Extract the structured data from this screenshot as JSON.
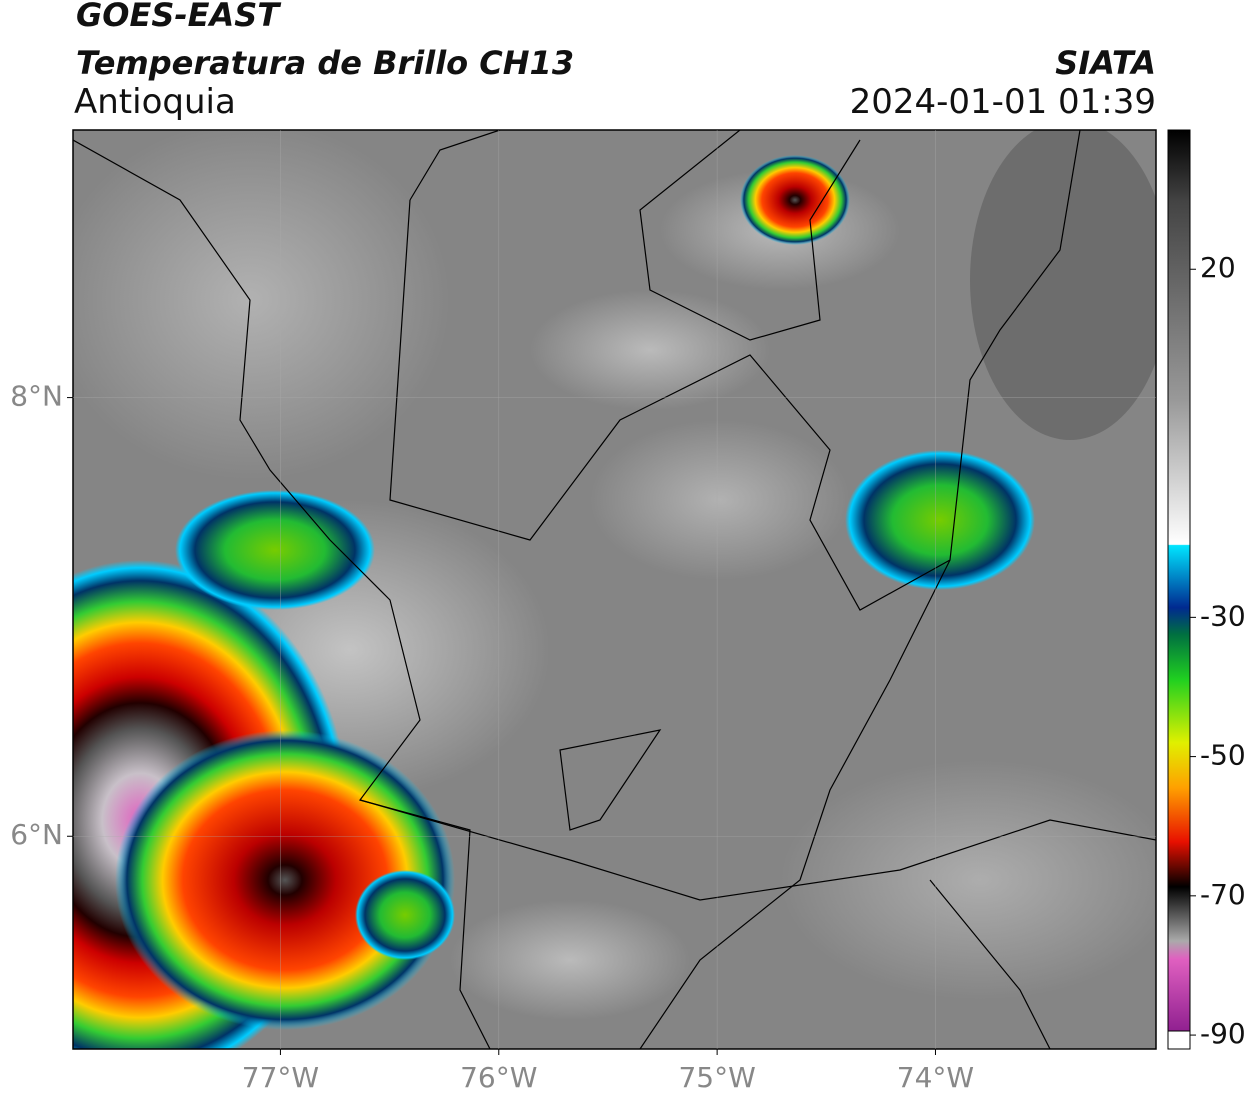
{
  "header": {
    "title": "GOES-EAST",
    "subtitle": "Temperatura de Brillo CH13",
    "region": "Antioquia",
    "source": "SIATA",
    "datetime": "2024-01-01 01:39"
  },
  "map": {
    "xlim": [
      -77.95,
      -72.99
    ],
    "ylim": [
      5.03,
      9.22
    ],
    "xticks": [
      {
        "value": -77,
        "label": "77°W"
      },
      {
        "value": -76,
        "label": "76°W"
      },
      {
        "value": -75,
        "label": "75°W"
      },
      {
        "value": -74,
        "label": "74°W"
      }
    ],
    "yticks": [
      {
        "value": 8,
        "label": "8°N"
      },
      {
        "value": 6,
        "label": "6°N"
      }
    ],
    "grid": true
  },
  "colorbar": {
    "lim": [
      -92,
      40
    ],
    "ticks": [
      20,
      -30,
      -50,
      -70,
      -90
    ]
  }
}
